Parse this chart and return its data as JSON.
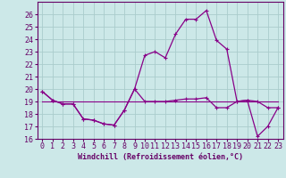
{
  "xlabel": "Windchill (Refroidissement éolien,°C)",
  "background_color": "#cce8e8",
  "grid_color": "#aacccc",
  "line_color": "#880088",
  "hours": [
    0,
    1,
    2,
    3,
    4,
    5,
    6,
    7,
    8,
    9,
    10,
    11,
    12,
    13,
    14,
    15,
    16,
    17,
    18,
    19,
    20,
    21,
    22,
    23
  ],
  "temp": [
    19.8,
    19.1,
    18.8,
    18.8,
    17.6,
    17.5,
    17.2,
    17.1,
    18.3,
    20.0,
    22.7,
    23.0,
    22.5,
    24.4,
    25.6,
    25.6,
    26.3,
    23.9,
    23.2,
    19.0,
    19.1,
    19.0,
    18.5,
    18.5
  ],
  "windchill": [
    19.8,
    19.1,
    18.8,
    18.8,
    17.6,
    17.5,
    17.2,
    17.1,
    18.3,
    20.0,
    19.0,
    19.0,
    19.0,
    19.1,
    19.2,
    19.2,
    19.3,
    18.5,
    18.5,
    19.0,
    19.1,
    16.2,
    17.0,
    18.5
  ],
  "flat_ref": [
    19.0,
    19.0,
    19.0,
    19.0,
    19.0,
    19.0,
    19.0,
    19.0,
    19.0,
    19.0,
    19.0,
    19.0,
    19.0,
    19.0,
    19.0,
    19.0,
    19.0,
    19.0,
    19.0,
    19.0,
    19.0,
    19.0,
    19.0,
    19.0
  ],
  "ylim": [
    16,
    27
  ],
  "yticks": [
    16,
    17,
    18,
    19,
    20,
    21,
    22,
    23,
    24,
    25,
    26
  ],
  "label_fontsize": 6,
  "tick_fontsize": 6
}
